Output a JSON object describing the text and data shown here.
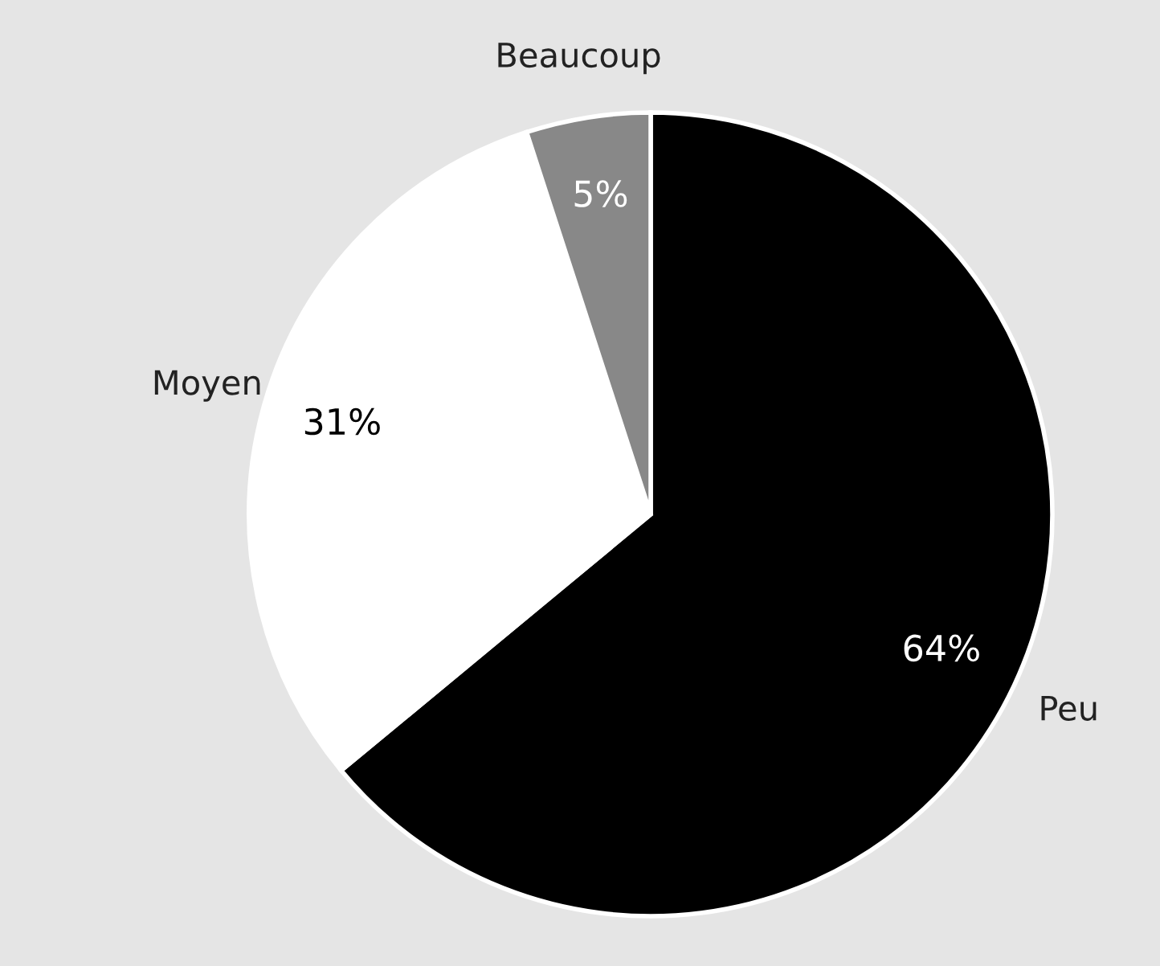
{
  "chart_data": {
    "type": "pie",
    "categories": [
      "Peu",
      "Moyen",
      "Beaucoup"
    ],
    "values": [
      64,
      31,
      5
    ],
    "colors": [
      "#000000",
      "#ffffff",
      "#888888"
    ],
    "value_labels": [
      "64%",
      "31%",
      "5%"
    ]
  }
}
